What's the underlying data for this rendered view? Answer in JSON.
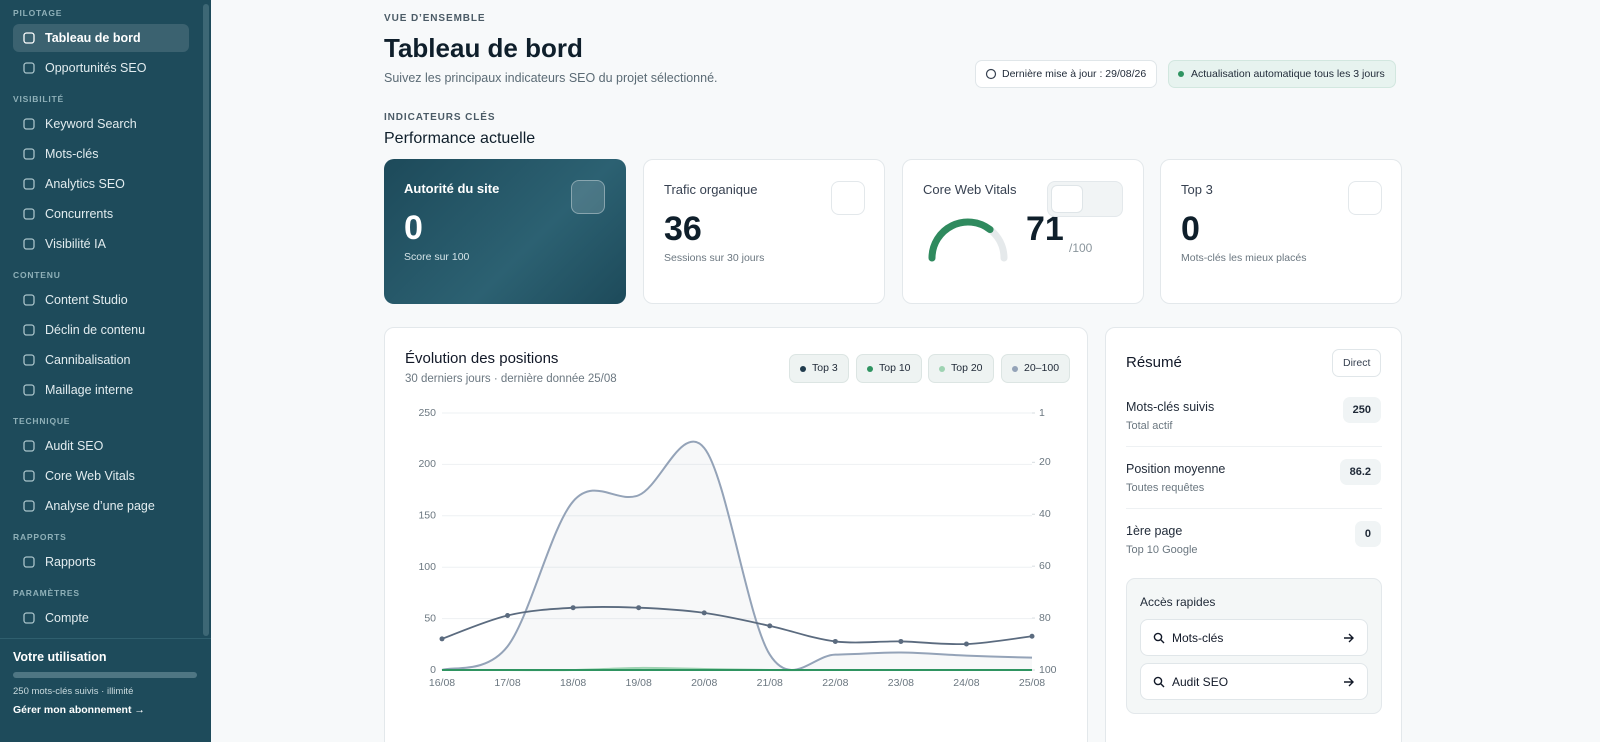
{
  "sidebar": {
    "sections": [
      {
        "label": "PILOTAGE",
        "items": [
          "Tableau de bord",
          "Opportunités SEO"
        ]
      },
      {
        "label": "VISIBILITÉ",
        "items": [
          "Keyword Search",
          "Mots-clés",
          "Analytics SEO",
          "Concurrents",
          "Visibilité IA"
        ]
      },
      {
        "label": "CONTENU",
        "items": [
          "Content Studio",
          "Déclin de contenu",
          "Cannibalisation",
          "Maillage interne"
        ]
      },
      {
        "label": "TECHNIQUE",
        "items": [
          "Audit SEO",
          "Core Web Vitals",
          "Analyse d’une page"
        ]
      },
      {
        "label": "RAPPORTS",
        "items": [
          "Rapports"
        ]
      },
      {
        "label": "PARAMÈTRES",
        "items": [
          "Compte"
        ]
      }
    ],
    "usage": {
      "title": "Votre utilisation",
      "text": "250 mots-clés suivis · illimité",
      "link": "Gérer mon abonnement"
    }
  },
  "header": {
    "eyebrow": "VUE D’ENSEMBLE",
    "title": "Tableau de bord",
    "subtitle": "Suivez les principaux indicateurs SEO du projet sélectionné.",
    "updated": "Dernière mise à jour : 29/08/26",
    "auto": "Actualisation automatique tous les 3 jours"
  },
  "kpi": {
    "eyebrow": "INDICATEURS CLÉS",
    "title": "Performance actuelle",
    "cards": [
      {
        "title": "Autorité du site",
        "value": 0,
        "sub": "Score sur 100"
      },
      {
        "title": "Trafic organique",
        "value": 36,
        "sub": "Sessions sur 30 jours"
      },
      {
        "title": "Core Web Vitals",
        "value": 71,
        "max": 100,
        "max_label": "/100"
      },
      {
        "title": "Top 3",
        "value": 0,
        "sub": "Mots-clés les mieux placés"
      }
    ]
  },
  "chart_data": {
    "type": "line",
    "title": "Évolution des positions",
    "subtitle": "30 derniers jours · dernière donnée 25/08",
    "categories": [
      "16/08",
      "17/08",
      "18/08",
      "19/08",
      "20/08",
      "21/08",
      "22/08",
      "23/08",
      "24/08",
      "25/08"
    ],
    "series": [
      {
        "name": "Top 3",
        "color": "#1f3b4d",
        "values": [
          0,
          0,
          0,
          0,
          0,
          0,
          0,
          0,
          0,
          0
        ]
      },
      {
        "name": "Top 10",
        "color": "#2f9461",
        "values": [
          0,
          0,
          0,
          0,
          0,
          0,
          0,
          0,
          0,
          0
        ]
      },
      {
        "name": "Top 20",
        "color": "#9ed3b2",
        "values": [
          0,
          0,
          0,
          2,
          1,
          0,
          0,
          0,
          0,
          0
        ]
      },
      {
        "name": "20–100",
        "color": "#94a3b8",
        "values": [
          0,
          23,
          164,
          170,
          216,
          15,
          15,
          17,
          14,
          12
        ]
      },
      {
        "color": "#5b6b7f",
        "axis": "y2",
        "values": [
          88,
          79,
          76,
          76,
          78,
          83,
          89,
          89,
          90,
          87
        ]
      }
    ],
    "ylim": [
      0,
      250
    ],
    "yticks": [
      0,
      50,
      100,
      150,
      200,
      250
    ],
    "y2lim": [
      1,
      100
    ],
    "y2ticks": [
      1,
      20,
      40,
      60,
      80,
      100
    ],
    "y2_inverted": true,
    "grid": true
  },
  "summary": {
    "title": "Résumé",
    "button": "Direct",
    "rows": [
      {
        "label": "Mots-clés suivis",
        "sub": "Total actif",
        "value": 250
      },
      {
        "label": "Position moyenne",
        "sub": "Toutes requêtes",
        "value": 86.2
      },
      {
        "label": "1ère page",
        "sub": "Top 10 Google",
        "value": 0
      }
    ],
    "quick": {
      "title": "Accès rapides",
      "links": [
        "Mots-clés",
        "Audit SEO"
      ]
    }
  }
}
